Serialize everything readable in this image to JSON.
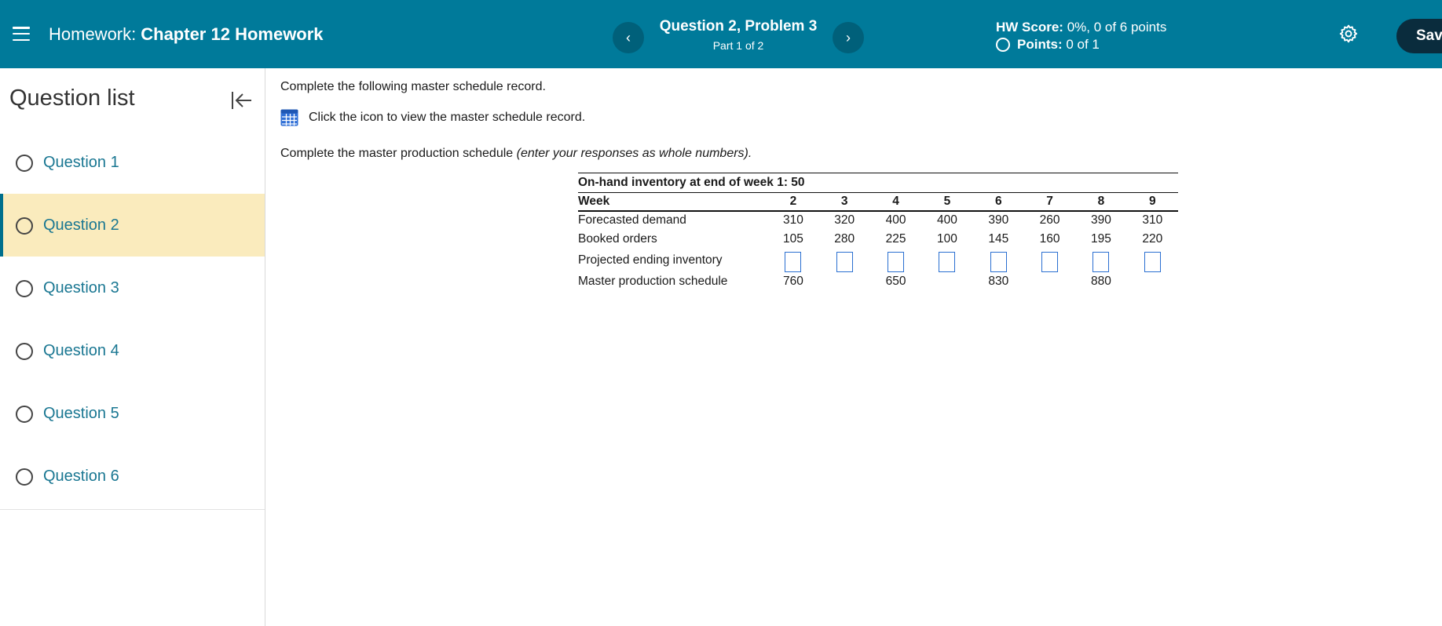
{
  "header": {
    "hw_lead": "Homework:",
    "hw_name": "Chapter 12 Homework",
    "question_title": "Question 2, Problem 3",
    "question_part": "Part 1 of 2",
    "prev_label": "‹",
    "next_label": "›",
    "score_label": "HW Score:",
    "score_value": "0%, 0 of 6 points",
    "points_label": "Points:",
    "points_value": "0 of 1",
    "save_label": "Sav"
  },
  "sidebar": {
    "title": "Question list",
    "items": [
      {
        "label": "Question 1"
      },
      {
        "label": "Question 2"
      },
      {
        "label": "Question 3"
      },
      {
        "label": "Question 4"
      },
      {
        "label": "Question 5"
      },
      {
        "label": "Question 6"
      }
    ],
    "active_index": 1
  },
  "main": {
    "instruction": "Complete the following master schedule record.",
    "icon_text": "Click the icon to view the master schedule record.",
    "instruction2": "Complete the master production schedule",
    "instruction2_italic": "(enter your responses as whole numbers)."
  },
  "table": {
    "caption": "On-hand inventory at end of week 1: 50",
    "week_label": "Week",
    "weeks": [
      "2",
      "3",
      "4",
      "5",
      "6",
      "7",
      "8",
      "9"
    ],
    "rows": {
      "forecast": {
        "label": "Forecasted demand",
        "values": [
          "310",
          "320",
          "400",
          "400",
          "390",
          "260",
          "390",
          "310"
        ]
      },
      "booked": {
        "label": "Booked orders",
        "values": [
          "105",
          "280",
          "225",
          "100",
          "145",
          "160",
          "195",
          "220"
        ]
      },
      "projected": {
        "label": "Projected ending inventory",
        "values": [
          "",
          "",
          "",
          "",
          "",
          "",
          "",
          ""
        ]
      },
      "mps": {
        "label": "Master production schedule",
        "values": [
          "760",
          "",
          "650",
          "",
          "830",
          "",
          "880",
          ""
        ]
      }
    }
  },
  "colors": {
    "header_bg": "#007a9a",
    "active_item_bg": "#faebbd",
    "link_text": "#1a7792",
    "input_border": "#2a6fd1"
  },
  "icons": {
    "menu": "hamburger-icon",
    "prev": "chevron-left-icon",
    "next": "chevron-right-icon",
    "settings": "gear-icon",
    "collapse": "collapse-left-icon",
    "table": "table-grid-icon",
    "status": "circle-icon"
  }
}
